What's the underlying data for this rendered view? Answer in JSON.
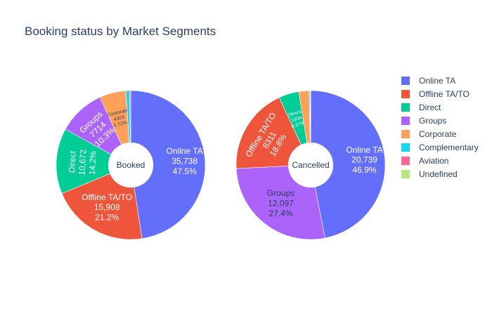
{
  "chart_data": {
    "type": "pie",
    "title": "Booking status by Market Segments",
    "legend": {
      "placement": "right",
      "entries": [
        {
          "name": "Online TA",
          "color": "#636efa"
        },
        {
          "name": "Offline TA/TO",
          "color": "#ef553b"
        },
        {
          "name": "Direct",
          "color": "#00cc96"
        },
        {
          "name": "Groups",
          "color": "#ab63fa"
        },
        {
          "name": "Corporate",
          "color": "#ffa15a"
        },
        {
          "name": "Complementary",
          "color": "#19d3f3"
        },
        {
          "name": "Aviation",
          "color": "#ff6692"
        },
        {
          "name": "Undefined",
          "color": "#b6e880"
        }
      ]
    },
    "pies": [
      {
        "hole_label": "Booked",
        "slices": [
          {
            "name": "Online TA",
            "value": 35738,
            "value_label": "35,738",
            "percent_label": "47.5%"
          },
          {
            "name": "Offline TA/TO",
            "value": 15908,
            "value_label": "15,908",
            "percent_label": "21.2%"
          },
          {
            "name": "Direct",
            "value": 10672,
            "value_label": "10,672",
            "percent_label": "14.2%"
          },
          {
            "name": "Groups",
            "value": 7714,
            "value_label": "7714",
            "percent_label": "10.3%"
          },
          {
            "name": "Corporate",
            "value": 4303,
            "value_label": "4303",
            "percent_label": "5.72%"
          },
          {
            "name": "Complementary",
            "value": 600,
            "value_label": "",
            "percent_label": ""
          },
          {
            "name": "Aviation",
            "value": 180,
            "value_label": "",
            "percent_label": ""
          },
          {
            "name": "Undefined",
            "value": 0,
            "value_label": "",
            "percent_label": ""
          }
        ]
      },
      {
        "hole_label": "Cancelled",
        "slices": [
          {
            "name": "Online TA",
            "value": 20739,
            "value_label": "20,739",
            "percent_label": "46.9%"
          },
          {
            "name": "Offline TA/TO",
            "value": 8311,
            "value_label": "8311",
            "percent_label": "18.8%"
          },
          {
            "name": "Direct",
            "value": 1934,
            "value_label": "1934",
            "percent_label": "4.37%"
          },
          {
            "name": "Groups",
            "value": 12097,
            "value_label": "12,097",
            "percent_label": "27.4%"
          },
          {
            "name": "Corporate",
            "value": 992,
            "value_label": "",
            "percent_label": ""
          },
          {
            "name": "Complementary",
            "value": 88,
            "value_label": "",
            "percent_label": ""
          },
          {
            "name": "Aviation",
            "value": 52,
            "value_label": "",
            "percent_label": ""
          },
          {
            "name": "Undefined",
            "value": 2,
            "value_label": "",
            "percent_label": ""
          }
        ]
      }
    ]
  }
}
